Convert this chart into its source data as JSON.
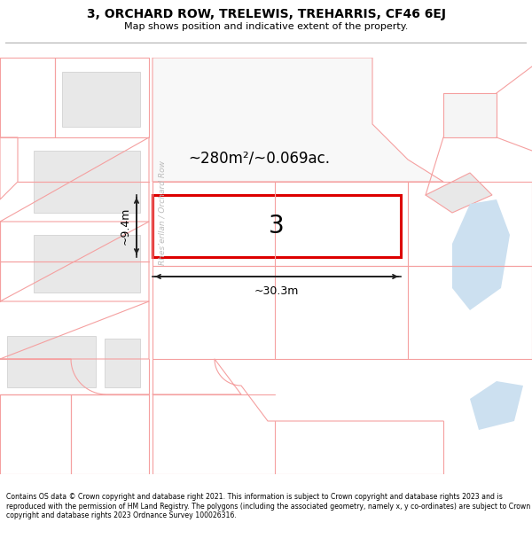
{
  "title": "3, ORCHARD ROW, TRELEWIS, TREHARRIS, CF46 6EJ",
  "subtitle": "Map shows position and indicative extent of the property.",
  "footer": "Contains OS data © Crown copyright and database right 2021. This information is subject to Crown copyright and database rights 2023 and is reproduced with the permission of HM Land Registry. The polygons (including the associated geometry, namely x, y co-ordinates) are subject to Crown copyright and database rights 2023 Ordnance Survey 100026316.",
  "bg_color": "#ffffff",
  "map_bg": "#ffffff",
  "boundary_color": "#f5a0a0",
  "building_fill": "#e8e8e8",
  "building_edge": "#cccccc",
  "highlight_fill": "#ffffff",
  "highlight_border": "#dd0000",
  "area_text": "~280m²/~0.069ac.",
  "plot_number": "3",
  "dim_width": "~30.3m",
  "dim_height": "~9.4m",
  "road_label": "Rhes’erllan / Orchard Row",
  "water_color": "#cce0f0",
  "road_label_color": "#bbbbbb",
  "dim_color": "#222222",
  "text_color": "#000000"
}
